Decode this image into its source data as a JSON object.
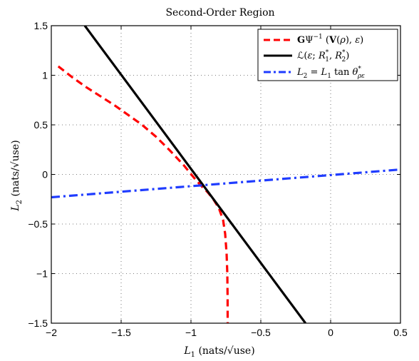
{
  "chart_data": {
    "type": "line",
    "title": "Second-Order Region",
    "xlabel": "L1 (nats/√use)",
    "ylabel": "L2 (nats/√use)",
    "xlim": [
      -2,
      0.5
    ],
    "ylim": [
      -1.5,
      1.5
    ],
    "grid": true,
    "legend_position": "top-right",
    "x_ticks": [
      -2,
      -1.5,
      -1,
      -0.5,
      0,
      0.5
    ],
    "x_tick_labels": [
      "−2",
      "−1.5",
      "−1",
      "−0.5",
      "0",
      "0.5"
    ],
    "y_ticks": [
      1.5,
      1,
      0.5,
      0,
      -0.5,
      -1,
      -1.5
    ],
    "y_tick_labels": [
      "1.5",
      "1",
      "0.5",
      "0",
      "−0.5",
      "−1",
      "−1.5"
    ],
    "series": [
      {
        "name": "GΨ⁻¹(V(ρ), ε)",
        "color": "#ff0000",
        "style": "dashed",
        "x": [
          -1.95,
          -1.85,
          -1.75,
          -1.65,
          -1.55,
          -1.45,
          -1.35,
          -1.25,
          -1.15,
          -1.05,
          -0.98,
          -0.93,
          -0.88,
          -0.84,
          -0.8,
          -0.77,
          -0.755,
          -0.745,
          -0.74,
          -0.738,
          -0.737
        ],
        "y": [
          1.09,
          0.98,
          0.88,
          0.79,
          0.7,
          0.6,
          0.5,
          0.38,
          0.24,
          0.09,
          -0.03,
          -0.11,
          -0.18,
          -0.25,
          -0.34,
          -0.46,
          -0.6,
          -0.8,
          -1.0,
          -1.25,
          -1.5
        ]
      },
      {
        "name": "ℒ(ε; R₁*, R₂*)",
        "color": "#000000",
        "style": "solid",
        "x": [
          -1.76,
          -0.18
        ],
        "y": [
          1.5,
          -1.5
        ]
      },
      {
        "name": "L₂ = L₁ tan θ*ρε",
        "color": "#1f3cff",
        "style": "dashdot",
        "x": [
          -2,
          0.5
        ],
        "y": [
          -0.23,
          0.05
        ]
      }
    ]
  }
}
